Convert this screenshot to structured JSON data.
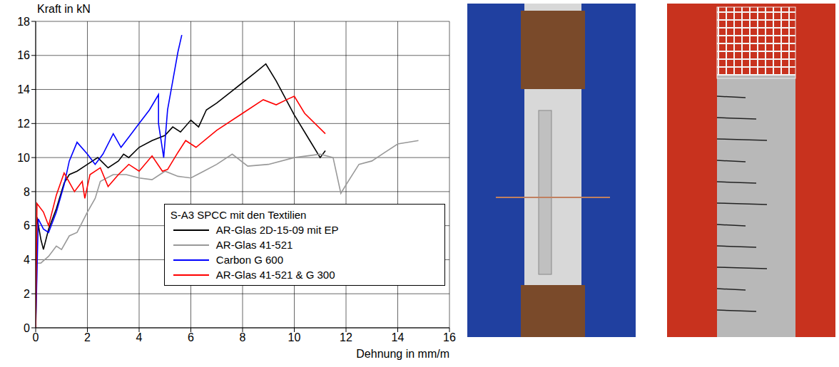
{
  "chart_data": {
    "type": "line",
    "y_label": "Kraft in kN",
    "x_label": "Dehnung in mm/m",
    "legend_title": "S-A3 SPCC mit den Textilien",
    "legend": "lower right",
    "grid": true,
    "xlim": [
      0,
      16
    ],
    "xticks": [
      0,
      2,
      4,
      6,
      8,
      10,
      12,
      14,
      16
    ],
    "ylim": [
      0,
      18
    ],
    "yticks": [
      0,
      2,
      4,
      6,
      8,
      10,
      12,
      14,
      16,
      18
    ],
    "series": [
      {
        "name": "AR-Glas 2D-15-09 mit EP",
        "color": "#000000",
        "x": [
          0,
          0.05,
          0.2,
          0.3,
          0.5,
          0.8,
          1.1,
          1.3,
          1.6,
          2,
          2.4,
          2.8,
          3.2,
          3.4,
          3.6,
          4,
          4.5,
          5,
          5.3,
          5.6,
          6,
          6.3,
          6.6,
          7,
          7.5,
          8,
          8.5,
          8.9,
          9.3,
          10,
          10.6,
          11,
          11.2
        ],
        "values": [
          0,
          6.5,
          5.2,
          4.6,
          5.8,
          7,
          8.5,
          9,
          9.2,
          9.6,
          10,
          9.4,
          9.8,
          10.2,
          10,
          10.6,
          11,
          11.3,
          11.8,
          11.5,
          12.2,
          11.8,
          12.8,
          13.2,
          13.8,
          14.4,
          15,
          15.5,
          14.5,
          12.5,
          11,
          10,
          10.4
        ]
      },
      {
        "name": "AR-Glas 41-521",
        "color": "#999999",
        "x": [
          0,
          0.05,
          0.2,
          0.5,
          0.8,
          1,
          1.3,
          1.6,
          2,
          2.3,
          2.5,
          3,
          3.5,
          4,
          4.5,
          5,
          5.5,
          6,
          6.5,
          7,
          7.6,
          8.2,
          9,
          10,
          11,
          11.5,
          11.8,
          12,
          12.5,
          13,
          13.5,
          14,
          14.8
        ],
        "values": [
          0,
          3.8,
          3.8,
          4.2,
          4.8,
          4.6,
          5.4,
          5.6,
          6.8,
          7.6,
          8.6,
          9,
          9,
          8.8,
          8.7,
          9.2,
          8.9,
          8.8,
          9.2,
          9.6,
          10.2,
          9.5,
          9.6,
          10,
          10.2,
          10,
          7.9,
          8.4,
          9.6,
          9.8,
          10.3,
          10.8,
          11
        ]
      },
      {
        "name": "Carbon G 600",
        "color": "#0000ff",
        "x": [
          0,
          0.1,
          0.3,
          0.5,
          0.8,
          1.1,
          1.3,
          1.6,
          2,
          2.3,
          2.6,
          3,
          3.3,
          3.6,
          4,
          4.4,
          4.75,
          4.75,
          4.95,
          5.1,
          5.3,
          5.5,
          5.65
        ],
        "values": [
          0,
          6.4,
          5.8,
          5.6,
          6.8,
          8.4,
          9.8,
          10.9,
          10.2,
          9.6,
          10.2,
          11.4,
          10.6,
          11.2,
          12,
          12.8,
          13.7,
          12,
          10,
          12.8,
          14.5,
          16.2,
          17.2
        ]
      },
      {
        "name": "AR-Glas 41-521 & G 300",
        "color": "#ff0000",
        "x": [
          0,
          0.05,
          0.3,
          0.5,
          0.8,
          1.1,
          1.5,
          1.8,
          1.9,
          2.1,
          2.5,
          2.8,
          3.2,
          3.6,
          4,
          4.5,
          4.9,
          5.1,
          5.5,
          5.8,
          6.2,
          7,
          8,
          8.8,
          9.3,
          9.7,
          10,
          10.4,
          11.2
        ],
        "values": [
          0,
          7.3,
          6.8,
          6,
          7.8,
          9.1,
          8,
          8.6,
          7.6,
          9,
          9.4,
          8.3,
          9,
          9.6,
          9.2,
          10.1,
          9.2,
          9.3,
          10.3,
          11,
          10.6,
          11.6,
          12.6,
          13.4,
          13.1,
          13.4,
          13.6,
          12.6,
          11.4
        ]
      }
    ]
  }
}
